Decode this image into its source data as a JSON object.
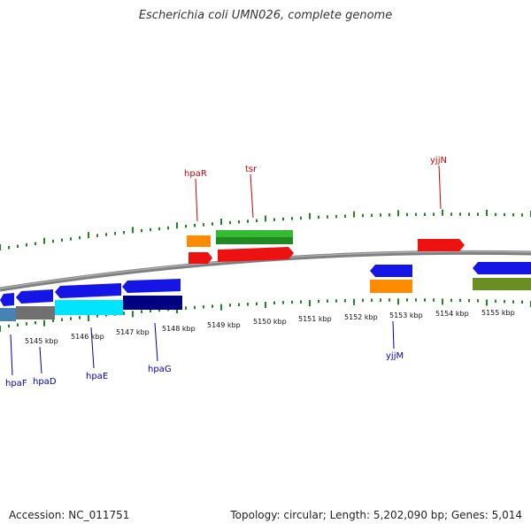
{
  "title": "Escherichia coli UMN026, complete genome",
  "footer": {
    "accession": "Accession: NC_011751",
    "stats": "Topology: circular; Length: 5,202,090 bp; Genes: 5,014"
  },
  "colors": {
    "backbone": "#808080",
    "ticks": "#1a8a1a",
    "label_forward": "#cc0000",
    "label_reverse": "#0000aa"
  },
  "kbp_ticks": [
    "5145 kbp",
    "5146 kbp",
    "5147 kbp",
    "5148 kbp",
    "5149 kbp",
    "5150 kbp",
    "5151 kbp",
    "5152 kbp",
    "5153 kbp",
    "5154 kbp",
    "5155 kbp"
  ],
  "genes_forward": [
    {
      "name": "hpaR"
    },
    {
      "name": "tsr"
    },
    {
      "name": "yjjN"
    }
  ],
  "genes_reverse": [
    {
      "name": "hpaF"
    },
    {
      "name": "hpaD"
    },
    {
      "name": "hpaE"
    },
    {
      "name": "hpaG"
    },
    {
      "name": "yjjM"
    }
  ]
}
